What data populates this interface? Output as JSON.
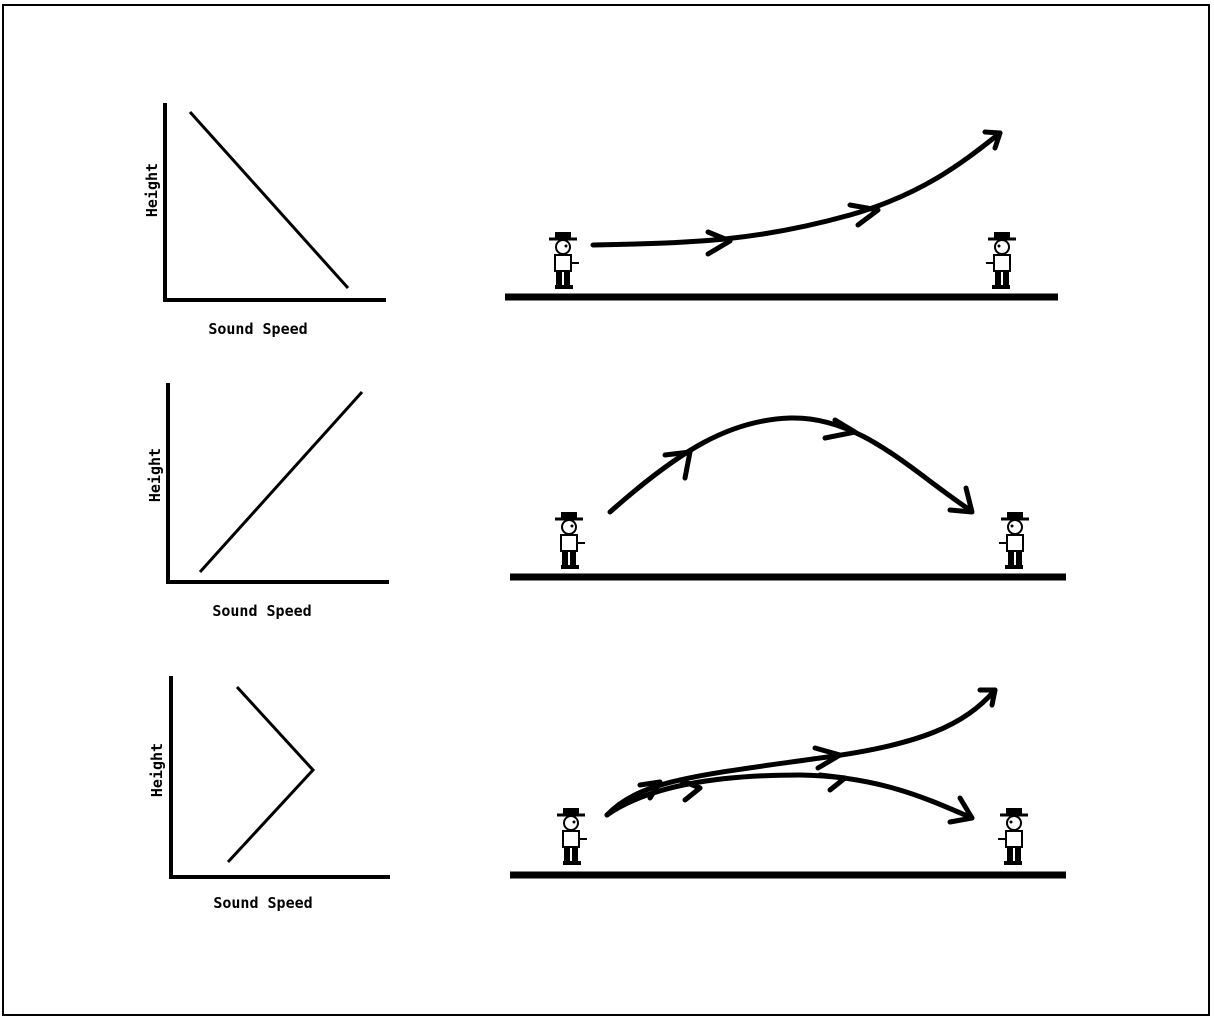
{
  "panels": [
    {
      "y_label": "Height",
      "x_label": "Sound Speed"
    },
    {
      "y_label": "Height",
      "x_label": "Sound Speed"
    },
    {
      "y_label": "Height",
      "x_label": "Sound Speed"
    }
  ]
}
